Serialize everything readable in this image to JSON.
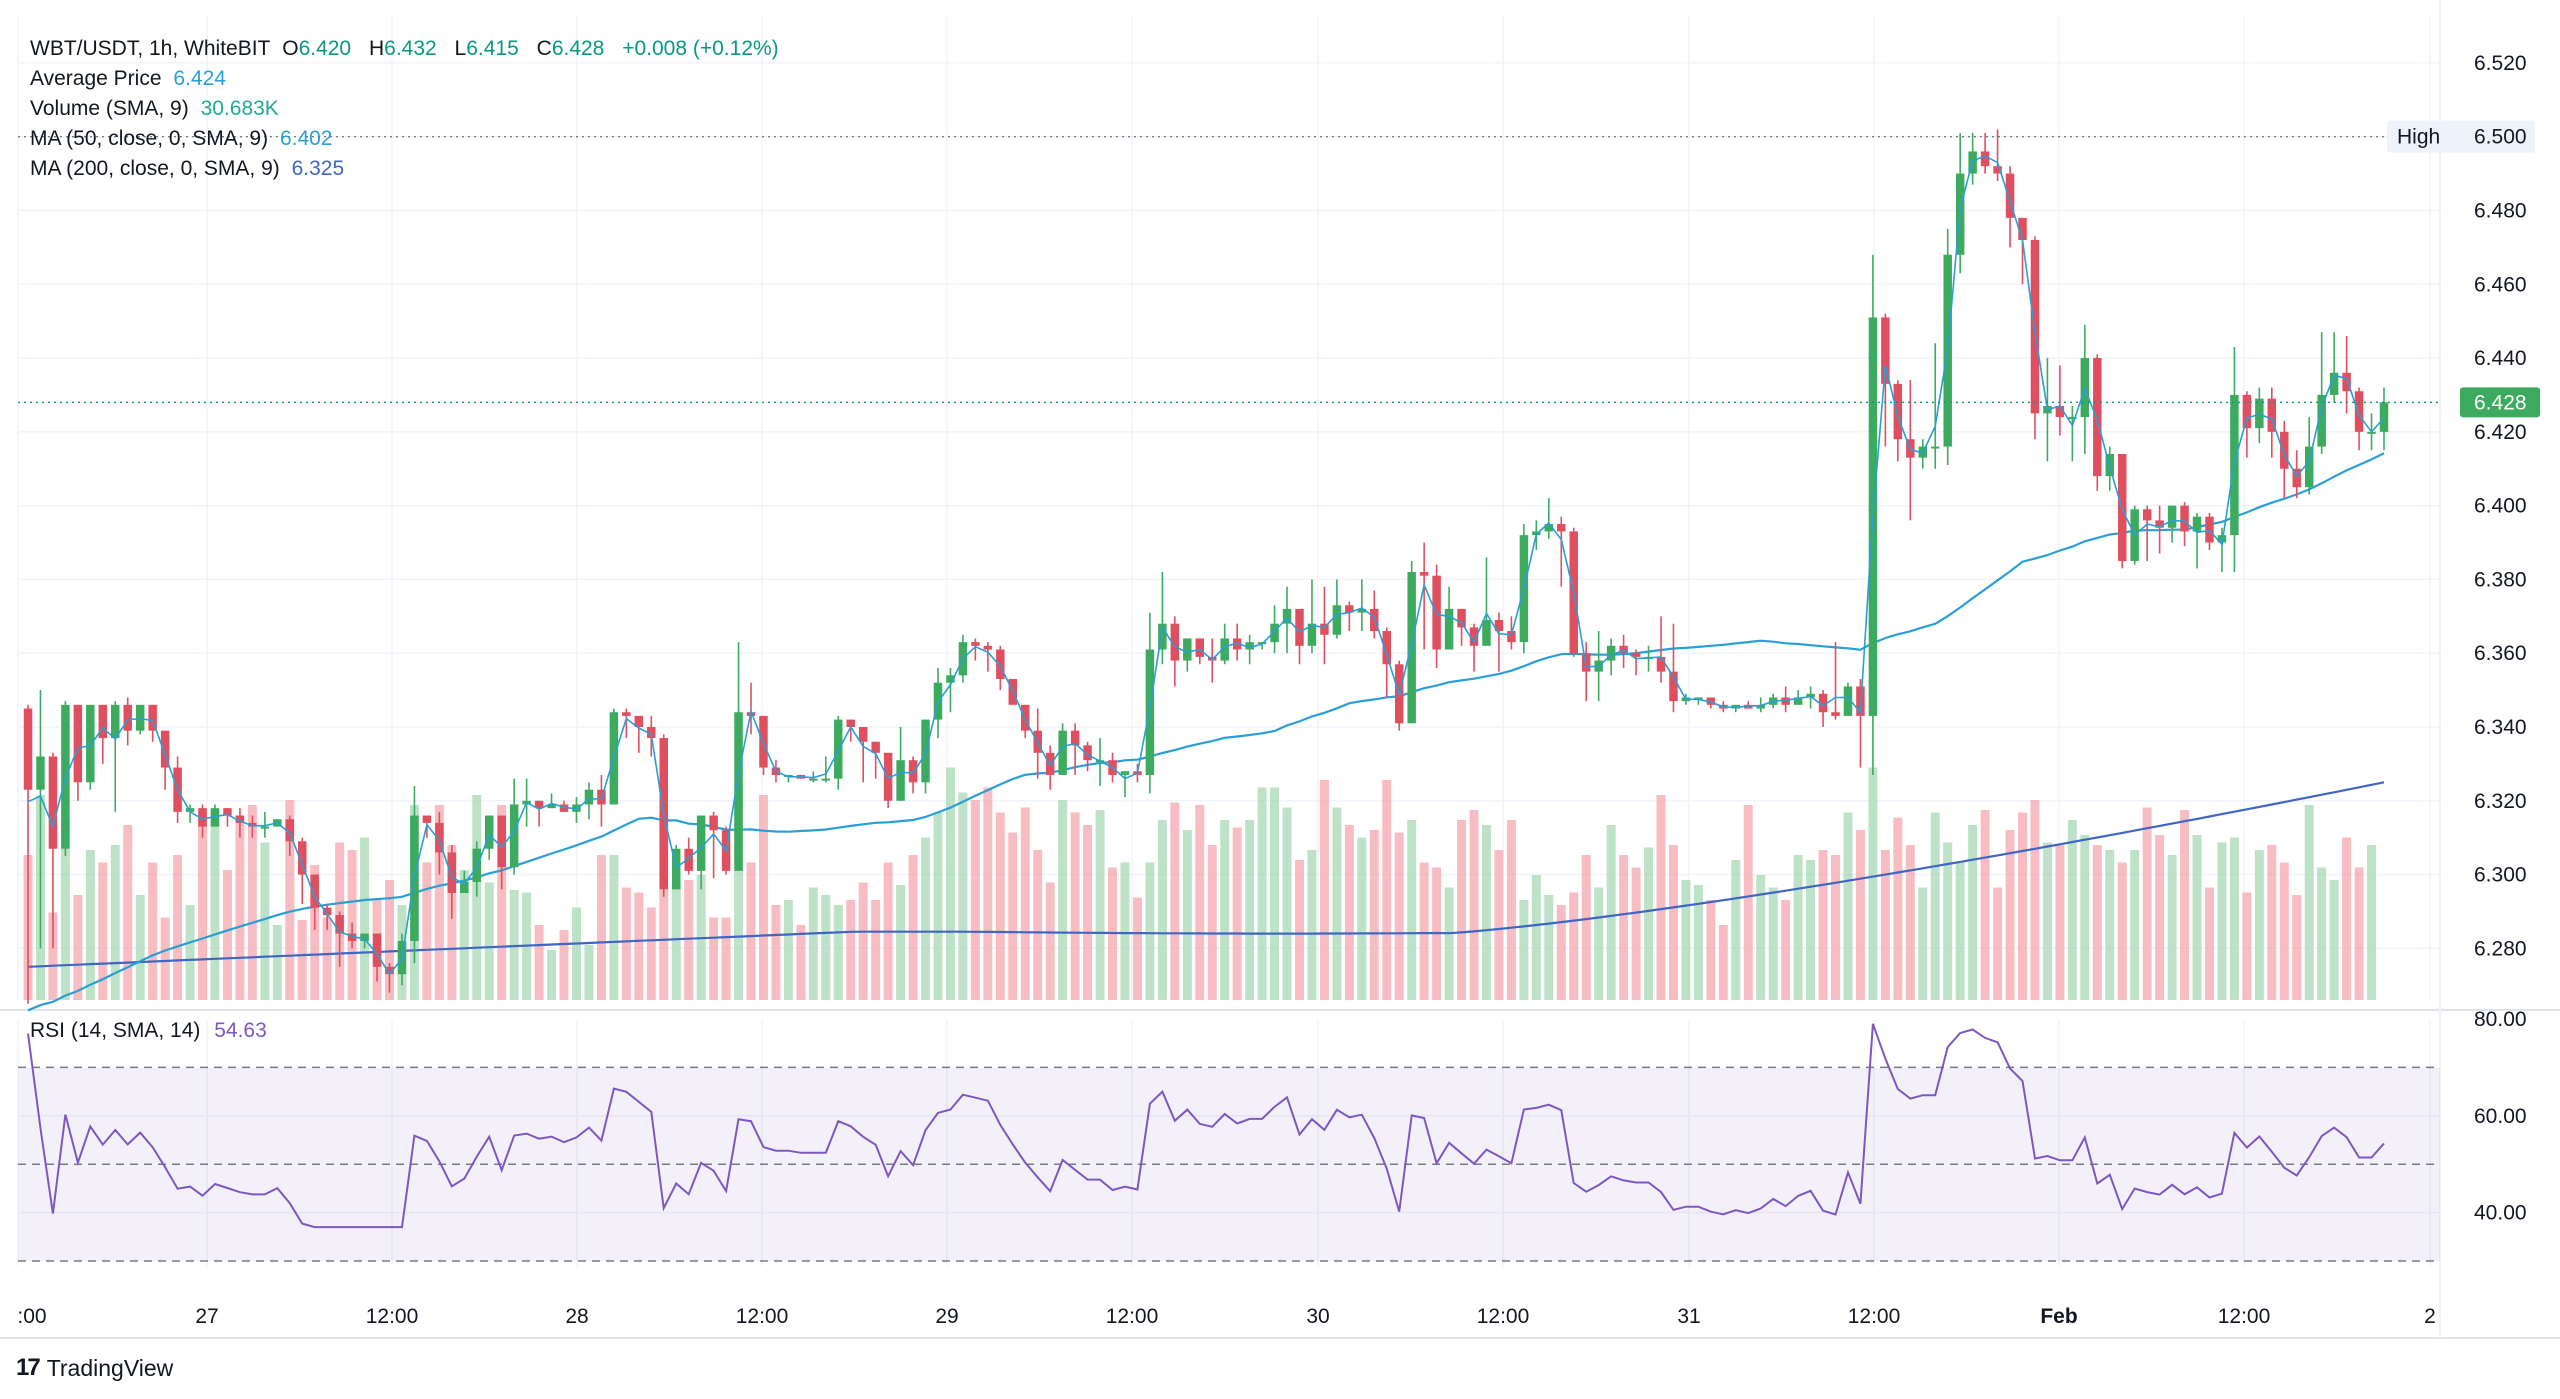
{
  "header": {
    "symbol": "WBT/USDT, 1h, WhiteBIT",
    "o_key": "O",
    "o_val": "6.420",
    "h_key": "H",
    "h_val": "6.432",
    "l_key": "L",
    "l_val": "6.415",
    "c_key": "C",
    "c_val": "6.428",
    "change": "+0.008 (+0.12%)"
  },
  "indicators": {
    "avg_price_label": "Average Price",
    "avg_price_value": "6.424",
    "volume_label": "Volume (SMA, 9)",
    "volume_value": "30.683K",
    "ma50_label": "MA (50, close, 0, SMA, 9)",
    "ma50_value": "6.402",
    "ma200_label": "MA (200, close, 0, SMA, 9)",
    "ma200_value": "6.325",
    "rsi_label": "RSI (14, SMA, 14)",
    "rsi_value": "54.63"
  },
  "brand": {
    "name": "TradingView"
  },
  "colors": {
    "up": "#089981",
    "down": "#f23645",
    "up_candle": "#3dab5f",
    "down_candle": "#e04f5f",
    "ma50": "#2a9fd6",
    "ma200": "#3f66c4",
    "rsi": "#7e57c2",
    "avg_price": "#2a9fd6"
  },
  "chart_data": {
    "type": "candlestick",
    "symbol": "WBT/USDT",
    "interval": "1h",
    "price_axis": {
      "ticks": [
        "6.520",
        "6.500",
        "6.480",
        "6.460",
        "6.440",
        "6.420",
        "6.400",
        "6.380",
        "6.360",
        "6.340",
        "6.320",
        "6.300",
        "6.280"
      ],
      "ylim": [
        6.265,
        6.525
      ]
    },
    "high_marker": {
      "label": "High",
      "value": "6.500"
    },
    "last_price": "6.428",
    "time_axis": {
      "ticks": [
        ":00",
        "27",
        "12:00",
        "28",
        "12:00",
        "29",
        "12:00",
        "30",
        "12:00",
        "31",
        "12:00",
        "Feb",
        "12:00",
        "2"
      ]
    },
    "candles": [
      [
        6.345,
        6.323,
        6.346,
        6.265
      ],
      [
        6.323,
        6.332,
        6.35,
        6.28
      ],
      [
        6.332,
        6.307,
        6.333,
        6.28
      ],
      [
        6.307,
        6.346,
        6.347,
        6.305
      ],
      [
        6.346,
        6.325,
        6.346,
        6.32
      ],
      [
        6.325,
        6.346,
        6.346,
        6.323
      ],
      [
        6.346,
        6.337,
        6.346,
        6.33
      ],
      [
        6.337,
        6.346,
        6.347,
        6.317
      ],
      [
        6.346,
        6.339,
        6.348,
        6.335
      ],
      [
        6.339,
        6.346,
        6.346,
        6.338
      ],
      [
        6.346,
        6.339,
        6.346,
        6.336
      ],
      [
        6.339,
        6.329,
        6.339,
        6.323
      ],
      [
        6.329,
        6.317,
        6.332,
        6.314
      ],
      [
        6.317,
        6.318,
        6.319,
        6.314
      ],
      [
        6.318,
        6.313,
        6.319,
        6.31
      ],
      [
        6.313,
        6.318,
        6.319,
        6.313
      ],
      [
        6.318,
        6.316,
        6.318,
        6.313
      ],
      [
        6.316,
        6.314,
        6.318,
        6.31
      ],
      [
        6.314,
        6.313,
        6.316,
        6.31
      ],
      [
        6.313,
        6.313,
        6.317,
        6.31
      ],
      [
        6.313,
        6.315,
        6.315,
        6.313
      ],
      [
        6.315,
        6.309,
        6.316,
        6.305
      ],
      [
        6.309,
        6.3,
        6.31,
        6.292
      ],
      [
        6.3,
        6.291,
        6.3,
        6.285
      ],
      [
        6.291,
        6.289,
        6.292,
        6.285
      ],
      [
        6.289,
        6.284,
        6.29,
        6.275
      ],
      [
        6.284,
        6.282,
        6.287,
        6.28
      ],
      [
        6.282,
        6.284,
        6.284,
        6.28
      ],
      [
        6.284,
        6.275,
        6.284,
        6.271
      ],
      [
        6.275,
        6.273,
        6.276,
        6.268
      ],
      [
        6.273,
        6.282,
        6.284,
        6.27
      ],
      [
        6.282,
        6.316,
        6.324,
        6.276
      ],
      [
        6.316,
        6.314,
        6.314,
        6.31
      ],
      [
        6.314,
        6.306,
        6.317,
        6.3
      ],
      [
        6.306,
        6.295,
        6.308,
        6.288
      ],
      [
        6.295,
        6.298,
        6.301,
        6.296
      ],
      [
        6.298,
        6.307,
        6.309,
        6.294
      ],
      [
        6.307,
        6.316,
        6.316,
        6.304
      ],
      [
        6.316,
        6.302,
        6.316,
        6.296
      ],
      [
        6.302,
        6.319,
        6.326,
        6.3
      ],
      [
        6.319,
        6.32,
        6.326,
        6.313
      ],
      [
        6.32,
        6.318,
        6.32,
        6.313
      ],
      [
        6.318,
        6.319,
        6.322,
        6.318
      ],
      [
        6.319,
        6.317,
        6.32,
        6.317
      ],
      [
        6.317,
        6.319,
        6.321,
        6.314
      ],
      [
        6.319,
        6.323,
        6.325,
        6.315
      ],
      [
        6.323,
        6.319,
        6.327,
        6.313
      ],
      [
        6.319,
        6.344,
        6.345,
        6.319
      ],
      [
        6.344,
        6.343,
        6.345,
        6.337
      ],
      [
        6.343,
        6.34,
        6.343,
        6.333
      ],
      [
        6.34,
        6.337,
        6.343,
        6.332
      ],
      [
        6.337,
        6.296,
        6.338,
        6.294
      ],
      [
        6.296,
        6.307,
        6.308,
        6.296
      ],
      [
        6.307,
        6.301,
        6.31,
        6.3
      ],
      [
        6.301,
        6.316,
        6.316,
        6.296
      ],
      [
        6.316,
        6.312,
        6.317,
        6.299
      ],
      [
        6.312,
        6.301,
        6.313,
        6.3
      ],
      [
        6.301,
        6.344,
        6.363,
        6.301
      ],
      [
        6.344,
        6.343,
        6.352,
        6.338
      ],
      [
        6.343,
        6.329,
        6.343,
        6.327
      ],
      [
        6.329,
        6.327,
        6.331,
        6.325
      ],
      [
        6.327,
        6.327,
        6.327,
        6.325
      ],
      [
        6.327,
        6.326,
        6.327,
        6.326
      ],
      [
        6.326,
        6.326,
        6.328,
        6.325
      ],
      [
        6.326,
        6.326,
        6.332,
        6.325
      ],
      [
        6.326,
        6.342,
        6.343,
        6.323
      ],
      [
        6.342,
        6.34,
        6.342,
        6.336
      ],
      [
        6.34,
        6.336,
        6.338,
        6.325
      ],
      [
        6.336,
        6.333,
        6.336,
        6.326
      ],
      [
        6.333,
        6.32,
        6.333,
        6.318
      ],
      [
        6.32,
        6.331,
        6.34,
        6.32
      ],
      [
        6.331,
        6.325,
        6.332,
        6.322
      ],
      [
        6.325,
        6.342,
        6.342,
        6.322
      ],
      [
        6.342,
        6.352,
        6.356,
        6.337
      ],
      [
        6.352,
        6.354,
        6.356,
        6.344
      ],
      [
        6.354,
        6.363,
        6.365,
        6.352
      ],
      [
        6.363,
        6.362,
        6.364,
        6.358
      ],
      [
        6.362,
        6.361,
        6.363,
        6.355
      ],
      [
        6.361,
        6.353,
        6.362,
        6.35
      ],
      [
        6.353,
        6.346,
        6.353,
        6.347
      ],
      [
        6.346,
        6.339,
        6.346,
        6.337
      ],
      [
        6.339,
        6.333,
        6.345,
        6.326
      ],
      [
        6.333,
        6.327,
        6.335,
        6.323
      ],
      [
        6.327,
        6.339,
        6.341,
        6.332
      ],
      [
        6.339,
        6.335,
        6.341,
        6.327
      ],
      [
        6.335,
        6.331,
        6.336,
        6.328
      ],
      [
        6.331,
        6.331,
        6.337,
        6.324
      ],
      [
        6.331,
        6.327,
        6.333,
        6.325
      ],
      [
        6.327,
        6.328,
        6.328,
        6.321
      ],
      [
        6.328,
        6.327,
        6.33,
        6.325
      ],
      [
        6.327,
        6.361,
        6.371,
        6.322
      ],
      [
        6.361,
        6.368,
        6.382,
        6.357
      ],
      [
        6.368,
        6.358,
        6.37,
        6.351
      ],
      [
        6.358,
        6.364,
        6.364,
        6.355
      ],
      [
        6.364,
        6.359,
        6.364,
        6.357
      ],
      [
        6.359,
        6.358,
        6.364,
        6.352
      ],
      [
        6.358,
        6.364,
        6.368,
        6.357
      ],
      [
        6.364,
        6.361,
        6.368,
        6.358
      ],
      [
        6.361,
        6.363,
        6.365,
        6.357
      ],
      [
        6.363,
        6.363,
        6.363,
        6.361
      ],
      [
        6.363,
        6.368,
        6.373,
        6.36
      ],
      [
        6.368,
        6.372,
        6.378,
        6.36
      ],
      [
        6.372,
        6.362,
        6.372,
        6.357
      ],
      [
        6.362,
        6.368,
        6.38,
        6.36
      ],
      [
        6.368,
        6.365,
        6.378,
        6.357
      ],
      [
        6.365,
        6.373,
        6.38,
        6.364
      ],
      [
        6.373,
        6.371,
        6.374,
        6.366
      ],
      [
        6.371,
        6.372,
        6.38,
        6.366
      ],
      [
        6.372,
        6.366,
        6.377,
        6.364
      ],
      [
        6.366,
        6.357,
        6.367,
        6.348
      ],
      [
        6.357,
        6.341,
        6.358,
        6.339
      ],
      [
        6.341,
        6.382,
        6.385,
        6.342
      ],
      [
        6.382,
        6.381,
        6.39,
        6.361
      ],
      [
        6.381,
        6.361,
        6.384,
        6.356
      ],
      [
        6.361,
        6.372,
        6.378,
        6.369
      ],
      [
        6.372,
        6.367,
        6.372,
        6.362
      ],
      [
        6.367,
        6.362,
        6.368,
        6.355
      ],
      [
        6.362,
        6.369,
        6.386,
        6.366
      ],
      [
        6.369,
        6.366,
        6.371,
        6.355
      ],
      [
        6.366,
        6.363,
        6.37,
        6.361
      ],
      [
        6.363,
        6.392,
        6.395,
        6.36
      ],
      [
        6.392,
        6.393,
        6.396,
        6.388
      ],
      [
        6.393,
        6.395,
        6.402,
        6.391
      ],
      [
        6.395,
        6.393,
        6.397,
        6.378
      ],
      [
        6.393,
        6.36,
        6.394,
        6.359
      ],
      [
        6.36,
        6.355,
        6.363,
        6.347
      ],
      [
        6.355,
        6.358,
        6.366,
        6.347
      ],
      [
        6.358,
        6.362,
        6.364,
        6.354
      ],
      [
        6.362,
        6.36,
        6.365,
        6.356
      ],
      [
        6.36,
        6.359,
        6.361,
        6.354
      ],
      [
        6.359,
        6.359,
        6.362,
        6.355
      ],
      [
        6.359,
        6.355,
        6.37,
        6.352
      ],
      [
        6.355,
        6.347,
        6.368,
        6.344
      ],
      [
        6.347,
        6.348,
        6.349,
        6.346
      ],
      [
        6.348,
        6.348,
        6.348,
        6.346
      ],
      [
        6.348,
        6.346,
        6.348,
        6.345
      ],
      [
        6.346,
        6.345,
        6.347,
        6.344
      ],
      [
        6.345,
        6.346,
        6.346,
        6.344
      ],
      [
        6.346,
        6.345,
        6.347,
        6.345
      ],
      [
        6.345,
        6.346,
        6.348,
        6.344
      ],
      [
        6.346,
        6.348,
        6.349,
        6.345
      ],
      [
        6.348,
        6.346,
        6.351,
        6.344
      ],
      [
        6.346,
        6.348,
        6.35,
        6.347
      ],
      [
        6.348,
        6.349,
        6.351,
        6.345
      ],
      [
        6.349,
        6.344,
        6.35,
        6.34
      ],
      [
        6.344,
        6.343,
        6.363,
        6.342
      ],
      [
        6.343,
        6.351,
        6.352,
        6.346
      ],
      [
        6.351,
        6.343,
        6.353,
        6.329
      ],
      [
        6.343,
        6.451,
        6.468,
        6.327
      ],
      [
        6.451,
        6.433,
        6.452,
        6.416
      ],
      [
        6.433,
        6.418,
        6.434,
        6.412
      ],
      [
        6.418,
        6.413,
        6.434,
        6.396
      ],
      [
        6.413,
        6.416,
        6.418,
        6.41
      ],
      [
        6.416,
        6.416,
        6.444,
        6.41
      ],
      [
        6.416,
        6.468,
        6.475,
        6.411
      ],
      [
        6.468,
        6.49,
        6.501,
        6.463
      ],
      [
        6.49,
        6.496,
        6.501,
        6.487
      ],
      [
        6.496,
        6.492,
        6.501,
        6.49
      ],
      [
        6.492,
        6.49,
        6.502,
        6.488
      ],
      [
        6.49,
        6.478,
        6.492,
        6.47
      ],
      [
        6.478,
        6.472,
        6.478,
        6.46
      ],
      [
        6.472,
        6.425,
        6.473,
        6.418
      ],
      [
        6.425,
        6.427,
        6.44,
        6.412
      ],
      [
        6.427,
        6.424,
        6.438,
        6.419
      ],
      [
        6.424,
        6.424,
        6.427,
        6.412
      ],
      [
        6.424,
        6.44,
        6.449,
        6.414
      ],
      [
        6.44,
        6.408,
        6.441,
        6.404
      ],
      [
        6.408,
        6.414,
        6.416,
        6.404
      ],
      [
        6.414,
        6.385,
        6.414,
        6.383
      ],
      [
        6.385,
        6.399,
        6.4,
        6.384
      ],
      [
        6.399,
        6.396,
        6.4,
        6.385
      ],
      [
        6.396,
        6.394,
        6.4,
        6.387
      ],
      [
        6.394,
        6.4,
        6.4,
        6.39
      ],
      [
        6.4,
        6.393,
        6.401,
        6.389
      ],
      [
        6.393,
        6.397,
        6.398,
        6.383
      ],
      [
        6.397,
        6.39,
        6.398,
        6.388
      ],
      [
        6.39,
        6.392,
        6.394,
        6.382
      ],
      [
        6.392,
        6.43,
        6.443,
        6.382
      ],
      [
        6.43,
        6.421,
        6.431,
        6.413
      ],
      [
        6.421,
        6.429,
        6.432,
        6.417
      ],
      [
        6.429,
        6.42,
        6.432,
        6.413
      ],
      [
        6.42,
        6.41,
        6.423,
        6.402
      ],
      [
        6.41,
        6.405,
        6.415,
        6.402
      ],
      [
        6.405,
        6.416,
        6.424,
        6.403
      ],
      [
        6.416,
        6.43,
        6.447,
        6.414
      ],
      [
        6.43,
        6.436,
        6.447,
        6.428
      ],
      [
        6.436,
        6.431,
        6.446,
        6.425
      ],
      [
        6.431,
        6.42,
        6.432,
        6.415
      ],
      [
        6.42,
        6.42,
        6.425,
        6.415
      ],
      [
        6.42,
        6.428,
        6.432,
        6.415
      ]
    ],
    "volume": [
      0.58,
      0.82,
      0.35,
      0.72,
      0.42,
      0.6,
      0.55,
      0.62,
      0.7,
      0.42,
      0.55,
      0.33,
      0.58,
      0.38,
      0.75,
      0.76,
      0.52,
      0.72,
      0.78,
      0.63,
      0.3,
      0.8,
      0.32,
      0.54,
      0.33,
      0.63,
      0.6,
      0.65,
      0.4,
      0.48,
      0.38,
      0.78,
      0.55,
      0.78,
      0.62,
      0.52,
      0.82,
      0.47,
      0.78,
      0.44,
      0.43,
      0.3,
      0.2,
      0.28,
      0.37,
      0.22,
      0.58,
      0.58,
      0.45,
      0.43,
      0.37,
      0.75,
      0.47,
      0.48,
      0.5,
      0.33,
      0.33,
      0.85,
      0.55,
      0.82,
      0.38,
      0.4,
      0.3,
      0.45,
      0.42,
      0.38,
      0.4,
      0.47,
      0.4,
      0.55,
      0.46,
      0.58,
      0.65,
      0.75,
      0.93,
      0.83,
      0.8,
      0.85,
      0.75,
      0.67,
      0.77,
      0.6,
      0.47,
      0.8,
      0.75,
      0.7,
      0.76,
      0.53,
      0.55,
      0.41,
      0.55,
      0.72,
      0.79,
      0.68,
      0.78,
      0.62,
      0.72,
      0.69,
      0.72,
      0.85,
      0.85,
      0.77,
      0.56,
      0.6,
      0.88,
      0.77,
      0.7,
      0.65,
      0.68,
      0.88,
      0.67,
      0.72,
      0.55,
      0.53,
      0.45,
      0.72,
      0.76,
      0.7,
      0.6,
      0.72,
      0.4,
      0.5,
      0.42,
      0.38,
      0.43,
      0.58,
      0.45,
      0.7,
      0.58,
      0.53,
      0.61,
      0.82,
      0.62,
      0.48,
      0.46,
      0.4,
      0.3,
      0.56,
      0.78,
      0.5,
      0.45,
      0.4,
      0.58,
      0.56,
      0.6,
      0.58,
      0.75,
      0.68,
      0.93,
      0.6,
      0.73,
      0.62,
      0.45,
      0.75,
      0.63,
      0.55,
      0.7,
      0.76,
      0.45,
      0.68,
      0.75,
      0.8,
      0.63,
      0.62,
      0.72,
      0.66,
      0.62,
      0.6,
      0.55,
      0.6,
      0.77,
      0.66,
      0.58,
      0.76,
      0.66,
      0.45,
      0.63,
      0.65,
      0.43,
      0.6,
      0.62,
      0.55,
      0.42,
      0.78,
      0.53,
      0.48,
      0.65,
      0.53,
      0.62
    ]
  }
}
